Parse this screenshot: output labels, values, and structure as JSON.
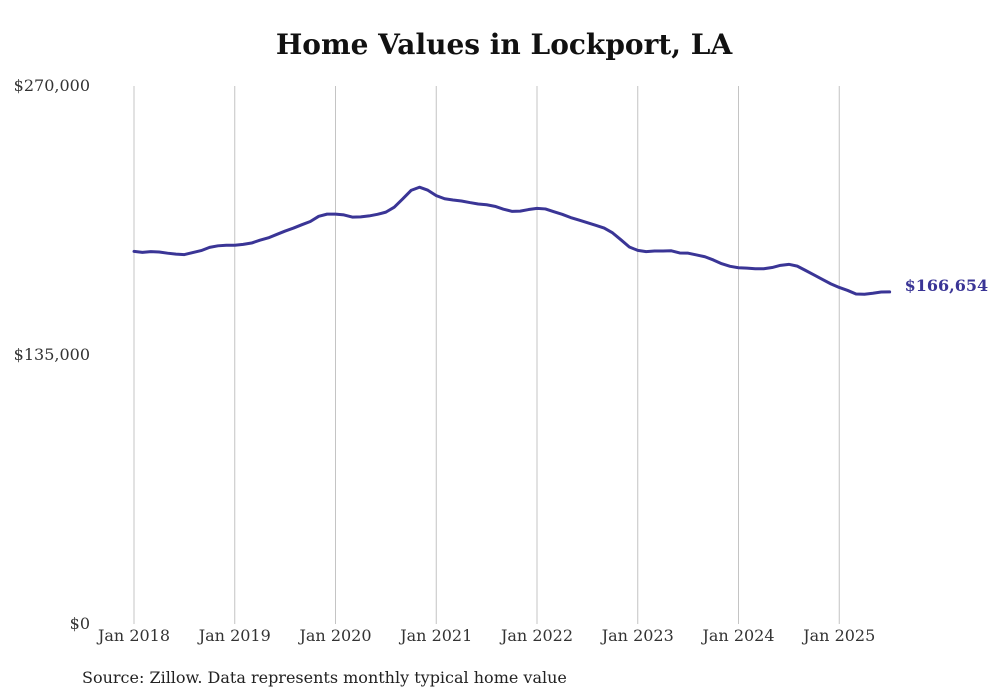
{
  "chart_data": {
    "type": "line",
    "title": "Home Values in Lockport, LA",
    "source": "Source: Zillow. Data represents monthly typical home value",
    "xlabel": "",
    "ylabel": "",
    "ylim": [
      0,
      270000
    ],
    "yticks": [
      0,
      135000,
      270000
    ],
    "ytick_labels": [
      "$0",
      "$135,000",
      "$270,000"
    ],
    "xticks": [
      "Jan 2018",
      "Jan 2019",
      "Jan 2020",
      "Jan 2021",
      "Jan 2022",
      "Jan 2023",
      "Jan 2024",
      "Jan 2025"
    ],
    "grid": "vertical",
    "line_color": "#3a3596",
    "end_label": "$166,654",
    "series": [
      {
        "points": [
          [
            "2018-01",
            187000
          ],
          [
            "2018-02",
            186500
          ],
          [
            "2018-03",
            186900
          ],
          [
            "2018-04",
            186700
          ],
          [
            "2018-05",
            186100
          ],
          [
            "2018-06",
            185600
          ],
          [
            "2018-07",
            185400
          ],
          [
            "2018-08",
            186400
          ],
          [
            "2018-09",
            187400
          ],
          [
            "2018-10",
            189000
          ],
          [
            "2018-11",
            189800
          ],
          [
            "2018-12",
            190100
          ],
          [
            "2019-01",
            190100
          ],
          [
            "2019-02",
            190500
          ],
          [
            "2019-03",
            191200
          ],
          [
            "2019-04",
            192600
          ],
          [
            "2019-05",
            193800
          ],
          [
            "2019-06",
            195500
          ],
          [
            "2019-07",
            197200
          ],
          [
            "2019-08",
            198700
          ],
          [
            "2019-09",
            200400
          ],
          [
            "2019-10",
            202000
          ],
          [
            "2019-11",
            204600
          ],
          [
            "2019-12",
            205700
          ],
          [
            "2020-01",
            205700
          ],
          [
            "2020-02",
            205300
          ],
          [
            "2020-03",
            204200
          ],
          [
            "2020-04",
            204300
          ],
          [
            "2020-05",
            204800
          ],
          [
            "2020-06",
            205600
          ],
          [
            "2020-07",
            206700
          ],
          [
            "2020-08",
            209200
          ],
          [
            "2020-09",
            213300
          ],
          [
            "2020-10",
            217600
          ],
          [
            "2020-11",
            219200
          ],
          [
            "2020-12",
            217700
          ],
          [
            "2021-01",
            215000
          ],
          [
            "2021-02",
            213400
          ],
          [
            "2021-03",
            212800
          ],
          [
            "2021-04",
            212300
          ],
          [
            "2021-05",
            211500
          ],
          [
            "2021-06",
            210800
          ],
          [
            "2021-07",
            210400
          ],
          [
            "2021-08",
            209600
          ],
          [
            "2021-09",
            208200
          ],
          [
            "2021-10",
            207100
          ],
          [
            "2021-11",
            207200
          ],
          [
            "2021-12",
            208000
          ],
          [
            "2022-01",
            208600
          ],
          [
            "2022-02",
            208300
          ],
          [
            "2022-03",
            206900
          ],
          [
            "2022-04",
            205600
          ],
          [
            "2022-05",
            204000
          ],
          [
            "2022-06",
            202700
          ],
          [
            "2022-07",
            201400
          ],
          [
            "2022-08",
            200100
          ],
          [
            "2022-09",
            198700
          ],
          [
            "2022-10",
            196300
          ],
          [
            "2022-11",
            192800
          ],
          [
            "2022-12",
            189200
          ],
          [
            "2023-01",
            187500
          ],
          [
            "2023-02",
            186900
          ],
          [
            "2023-03",
            187200
          ],
          [
            "2023-04",
            187200
          ],
          [
            "2023-05",
            187300
          ],
          [
            "2023-06",
            186200
          ],
          [
            "2023-07",
            186100
          ],
          [
            "2023-08",
            185200
          ],
          [
            "2023-09",
            184300
          ],
          [
            "2023-10",
            182700
          ],
          [
            "2023-11",
            180800
          ],
          [
            "2023-12",
            179500
          ],
          [
            "2024-01",
            178800
          ],
          [
            "2024-02",
            178600
          ],
          [
            "2024-03",
            178300
          ],
          [
            "2024-04",
            178300
          ],
          [
            "2024-05",
            178900
          ],
          [
            "2024-06",
            180000
          ],
          [
            "2024-07",
            180500
          ],
          [
            "2024-08",
            179600
          ],
          [
            "2024-09",
            177400
          ],
          [
            "2024-10",
            175200
          ],
          [
            "2024-11",
            172900
          ],
          [
            "2024-12",
            170700
          ],
          [
            "2025-01",
            168900
          ],
          [
            "2025-02",
            167400
          ],
          [
            "2025-03",
            165600
          ],
          [
            "2025-04",
            165500
          ],
          [
            "2025-05",
            166000
          ],
          [
            "2025-06",
            166600
          ],
          [
            "2025-07",
            166654
          ]
        ]
      }
    ]
  }
}
